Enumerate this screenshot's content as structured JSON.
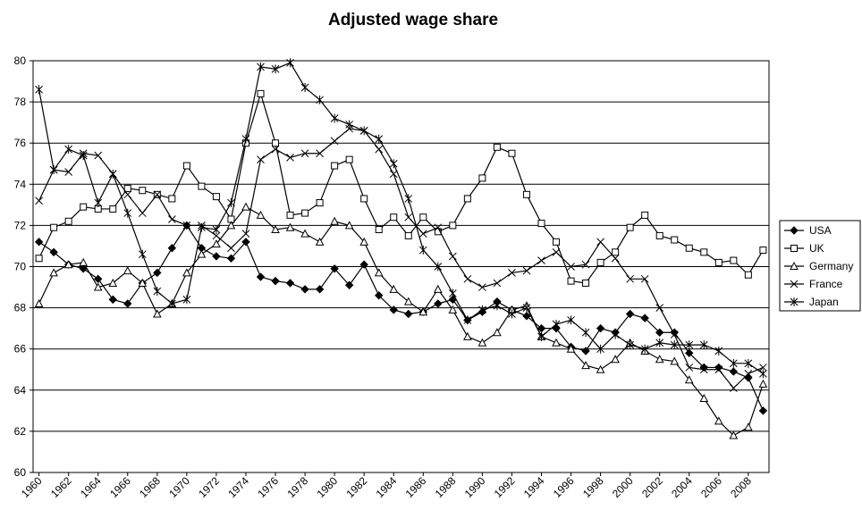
{
  "chart_data": {
    "type": "line",
    "title": "Adjusted wage share",
    "x": [
      1960,
      1961,
      1962,
      1963,
      1964,
      1965,
      1966,
      1967,
      1968,
      1969,
      1970,
      1971,
      1972,
      1973,
      1974,
      1975,
      1976,
      1977,
      1978,
      1979,
      1980,
      1981,
      1982,
      1983,
      1984,
      1985,
      1986,
      1987,
      1988,
      1989,
      1990,
      1991,
      1992,
      1993,
      1994,
      1995,
      1996,
      1997,
      1998,
      1999,
      2000,
      2001,
      2002,
      2003,
      2004,
      2005,
      2006,
      2007,
      2008,
      2009
    ],
    "xlim": [
      1959.6,
      2009.4
    ],
    "xticks": [
      1960,
      1962,
      1964,
      1966,
      1968,
      1970,
      1972,
      1974,
      1976,
      1978,
      1980,
      1982,
      1984,
      1986,
      1988,
      1990,
      1992,
      1994,
      1996,
      1998,
      2000,
      2002,
      2004,
      2006,
      2008
    ],
    "ylim": [
      60,
      80
    ],
    "yticks": [
      60,
      62,
      64,
      66,
      68,
      70,
      72,
      74,
      76,
      78,
      80
    ],
    "grid": true,
    "legend": "right",
    "series": [
      {
        "name": "USA",
        "color": "#000000",
        "marker": "diamond",
        "values": [
          71.2,
          70.7,
          70.1,
          69.9,
          69.4,
          68.4,
          68.2,
          69.2,
          69.7,
          70.9,
          72.0,
          70.9,
          70.5,
          70.4,
          71.2,
          69.5,
          69.3,
          69.2,
          68.9,
          68.9,
          69.9,
          69.1,
          70.1,
          68.6,
          67.9,
          67.7,
          67.8,
          68.2,
          68.4,
          67.4,
          67.8,
          68.3,
          67.9,
          67.6,
          67.0,
          67.0,
          66.1,
          65.9,
          67.0,
          66.8,
          67.7,
          67.5,
          66.8,
          66.8,
          65.8,
          65.1,
          65.1,
          64.9,
          64.6,
          63.0
        ]
      },
      {
        "name": "UK",
        "color": "#000000",
        "marker": "square",
        "values": [
          70.4,
          71.9,
          72.2,
          72.9,
          72.8,
          72.8,
          73.8,
          73.7,
          73.5,
          73.3,
          74.9,
          73.9,
          73.4,
          72.3,
          76.0,
          78.4,
          76.0,
          72.5,
          72.6,
          73.1,
          74.9,
          75.2,
          73.3,
          71.8,
          72.4,
          71.5,
          72.4,
          71.7,
          72.0,
          73.3,
          74.3,
          75.8,
          75.5,
          73.5,
          72.1,
          71.2,
          69.3,
          69.2,
          70.2,
          70.7,
          71.9,
          72.5,
          71.5,
          71.3,
          70.9,
          70.7,
          70.2,
          70.3,
          69.6,
          70.8
        ]
      },
      {
        "name": "Germany",
        "color": "#000000",
        "marker": "triangle",
        "values": [
          68.2,
          69.7,
          70.1,
          70.2,
          69.0,
          69.2,
          69.8,
          69.2,
          67.7,
          68.2,
          69.7,
          70.6,
          71.1,
          72.0,
          72.9,
          72.5,
          71.8,
          71.9,
          71.6,
          71.2,
          72.2,
          72.0,
          71.2,
          69.7,
          68.9,
          68.3,
          67.8,
          68.9,
          67.9,
          66.6,
          66.3,
          66.8,
          67.9,
          68.1,
          66.6,
          66.3,
          66.0,
          65.2,
          65.0,
          65.5,
          66.3,
          65.9,
          65.5,
          65.4,
          64.5,
          63.6,
          62.5,
          61.8,
          62.2,
          64.3
        ]
      },
      {
        "name": "France",
        "color": "#000000",
        "marker": "cross",
        "values": [
          73.2,
          74.7,
          74.6,
          75.5,
          75.4,
          74.5,
          73.5,
          72.6,
          73.5,
          72.3,
          72.0,
          72.0,
          71.5,
          70.9,
          71.6,
          75.2,
          75.7,
          75.3,
          75.5,
          75.5,
          76.1,
          76.7,
          76.6,
          75.7,
          74.5,
          72.4,
          71.6,
          71.9,
          70.5,
          69.4,
          69.0,
          69.2,
          69.7,
          69.8,
          70.3,
          70.7,
          70.0,
          70.1,
          71.2,
          70.4,
          69.4,
          69.4,
          68.0,
          66.7,
          65.1,
          65.0,
          65.0,
          64.1,
          64.8,
          65.1
        ]
      },
      {
        "name": "Japan",
        "color": "#000000",
        "marker": "star",
        "values": [
          78.6,
          74.7,
          75.7,
          75.4,
          73.1,
          74.5,
          72.6,
          70.6,
          68.8,
          68.2,
          68.4,
          71.9,
          71.8,
          73.1,
          76.2,
          79.7,
          79.6,
          79.9,
          78.7,
          78.1,
          77.2,
          76.9,
          76.6,
          76.2,
          75.0,
          73.3,
          70.8,
          70.0,
          68.7,
          67.4,
          67.9,
          68.1,
          67.7,
          68.0,
          66.6,
          67.2,
          67.4,
          66.8,
          66.0,
          66.7,
          66.2,
          66.0,
          66.3,
          66.2,
          66.2,
          66.2,
          65.9,
          65.3,
          65.3,
          64.8
        ]
      }
    ]
  }
}
